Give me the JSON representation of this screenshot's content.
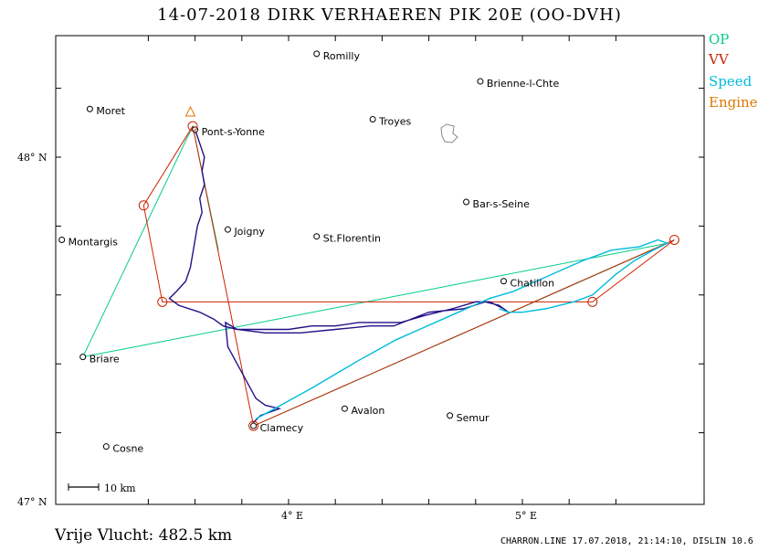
{
  "title": "14-07-2018   DIRK VERHAEREN   PIK 20E (OO-DVH)",
  "legend": [
    {
      "label": "OP",
      "color": "#00cc88"
    },
    {
      "label": "VV",
      "color": "#cc2200"
    },
    {
      "label": "Speed",
      "color": "#00bbdd"
    },
    {
      "label": "Engine",
      "color": "#dd7700"
    }
  ],
  "axes": {
    "lat_labels": [
      "48° N",
      "47° N"
    ],
    "lon_labels": [
      "4° E",
      "5° E"
    ]
  },
  "scale_label": "10 km",
  "distance": "Vrije Vlucht:  482.5 km",
  "credit": "CHARRON.LINE 17.07.2018, 21:14:10, DISLIN 10.6",
  "places": [
    {
      "name": "Romilly",
      "lon": 4.12,
      "lat": 48.3
    },
    {
      "name": "Brienne-l-Chte",
      "lon": 4.82,
      "lat": 48.22
    },
    {
      "name": "Moret",
      "lon": 3.15,
      "lat": 48.14
    },
    {
      "name": "Troyes",
      "lon": 4.36,
      "lat": 48.11
    },
    {
      "name": "Pont-s-Yonne",
      "lon": 3.6,
      "lat": 48.08
    },
    {
      "name": "Joigny",
      "lon": 3.74,
      "lat": 47.79
    },
    {
      "name": "St.Florentin",
      "lon": 4.12,
      "lat": 47.77
    },
    {
      "name": "Bar-s-Seine",
      "lon": 4.76,
      "lat": 47.87
    },
    {
      "name": "Montargis",
      "lon": 3.03,
      "lat": 47.76
    },
    {
      "name": "Chatillon",
      "lon": 4.92,
      "lat": 47.64
    },
    {
      "name": "Briare",
      "lon": 3.12,
      "lat": 47.42
    },
    {
      "name": "Avalon",
      "lon": 4.24,
      "lat": 47.27
    },
    {
      "name": "Semur",
      "lon": 4.69,
      "lat": 47.25
    },
    {
      "name": "Clamecy",
      "lon": 3.85,
      "lat": 47.22
    },
    {
      "name": "Cosne",
      "lon": 3.22,
      "lat": 47.16
    }
  ],
  "routes": {
    "op": [
      [
        3.12,
        47.42
      ],
      [
        3.59,
        48.09
      ],
      [
        3.7,
        47.73
      ]
    ],
    "op_alt": [
      [
        3.12,
        47.42
      ],
      [
        5.62,
        47.75
      ],
      [
        3.85,
        47.22
      ]
    ],
    "vv": [
      [
        3.59,
        48.09
      ],
      [
        3.38,
        47.86
      ],
      [
        3.46,
        47.58
      ],
      [
        5.3,
        47.58
      ],
      [
        5.65,
        47.76
      ],
      [
        3.85,
        47.22
      ],
      [
        3.59,
        48.09
      ]
    ],
    "vv_points": [
      [
        3.38,
        47.86
      ],
      [
        3.46,
        47.58
      ],
      [
        5.3,
        47.58
      ],
      [
        5.65,
        47.76
      ],
      [
        3.85,
        47.22
      ],
      [
        3.59,
        48.09
      ]
    ],
    "engine_point": [
      3.58,
      48.13
    ]
  }
}
